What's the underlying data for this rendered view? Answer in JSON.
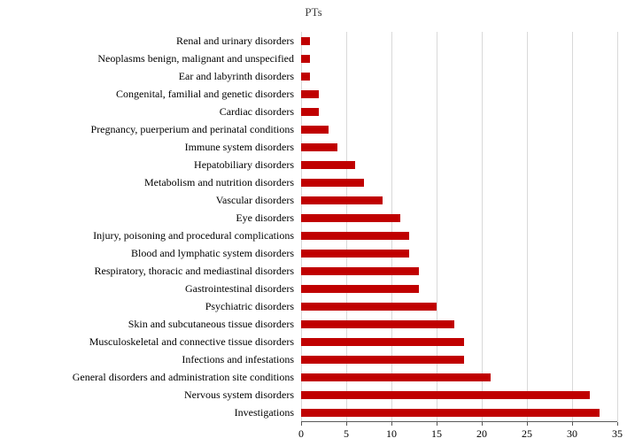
{
  "chart_data": {
    "type": "bar",
    "orientation": "horizontal",
    "title": "PTs",
    "categories": [
      "Renal and urinary disorders",
      "Neoplasms benign, malignant and unspecified",
      "Ear and labyrinth disorders",
      "Congenital, familial and genetic disorders",
      "Cardiac disorders",
      "Pregnancy, puerperium and perinatal conditions",
      "Immune system disorders",
      "Hepatobiliary disorders",
      "Metabolism and nutrition disorders",
      "Vascular disorders",
      "Eye disorders",
      "Injury, poisoning and procedural complications",
      "Blood and lymphatic system disorders",
      "Respiratory, thoracic and mediastinal disorders",
      "Gastrointestinal disorders",
      "Psychiatric disorders",
      "Skin and subcutaneous tissue disorders",
      "Musculoskeletal and connective tissue disorders",
      "Infections and infestations",
      "General disorders and administration site conditions",
      "Nervous system disorders",
      "Investigations"
    ],
    "values": [
      1,
      1,
      1,
      2,
      2,
      3,
      4,
      6,
      7,
      9,
      11,
      12,
      12,
      13,
      13,
      15,
      17,
      18,
      18,
      21,
      32,
      33
    ],
    "xlabel": "",
    "ylabel": "",
    "xlim": [
      0,
      35
    ],
    "xticks": [
      0,
      5,
      10,
      15,
      20,
      25,
      30,
      35
    ],
    "bar_color": "#c00000",
    "gridline_color": "#d9d9d9",
    "axis_color": "#595959",
    "grid": true,
    "legend": false
  }
}
